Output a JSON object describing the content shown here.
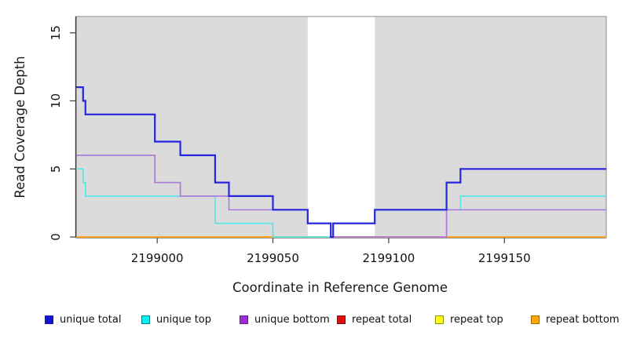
{
  "chart_data": {
    "type": "line",
    "step": "post",
    "title": "",
    "xlabel": "Coordinate in Reference Genome",
    "ylabel": "Read Coverage Depth",
    "xlim": [
      2198965,
      2199194
    ],
    "ylim": [
      0,
      16.2
    ],
    "x_end": 2199194,
    "grid": false,
    "legend_position": "bottom",
    "xticks": [
      2199000,
      2199050,
      2199100,
      2199150
    ],
    "xtick_labels": [
      "2199000",
      "2199050",
      "2199100",
      "2199150"
    ],
    "yticks": [
      0,
      5,
      10,
      15
    ],
    "ytick_labels": [
      "0",
      "5",
      "10",
      "15"
    ],
    "shading_color": "#DBDBDB",
    "plot_bg_shaded_regions": [
      [
        2198965,
        2199065
      ],
      [
        2199094,
        2199194
      ]
    ],
    "series": [
      {
        "name": "unique total",
        "color": "#2525DE",
        "width": 2.2,
        "points": [
          [
            2198965,
            11
          ],
          [
            2198968,
            10
          ],
          [
            2198969,
            9
          ],
          [
            2198999,
            7
          ],
          [
            2199010,
            6
          ],
          [
            2199025,
            4
          ],
          [
            2199031,
            3
          ],
          [
            2199050,
            2
          ],
          [
            2199065,
            1
          ],
          [
            2199075,
            0
          ],
          [
            2199076,
            1
          ],
          [
            2199094,
            2
          ],
          [
            2199125,
            4
          ],
          [
            2199131,
            5
          ]
        ]
      },
      {
        "name": "unique top",
        "color": "#58E6E6",
        "width": 1.7,
        "points": [
          [
            2198965,
            5
          ],
          [
            2198968,
            4
          ],
          [
            2198969,
            3
          ],
          [
            2199025,
            1
          ],
          [
            2199050,
            0
          ],
          [
            2199076,
            1
          ],
          [
            2199094,
            2
          ],
          [
            2199131,
            3
          ]
        ]
      },
      {
        "name": "unique bottom",
        "color": "#AB7CDC",
        "width": 1.7,
        "points": [
          [
            2198965,
            6
          ],
          [
            2198999,
            4
          ],
          [
            2199010,
            3
          ],
          [
            2199031,
            2
          ],
          [
            2199065,
            1
          ],
          [
            2199075,
            0
          ],
          [
            2199125,
            2
          ]
        ]
      },
      {
        "name": "repeat total",
        "color": "#D42A2A",
        "width": 1.5,
        "points": [
          [
            2198965,
            0
          ]
        ]
      },
      {
        "name": "repeat top",
        "color": "#EDED2F",
        "width": 1.5,
        "points": [
          [
            2198965,
            0
          ]
        ]
      },
      {
        "name": "repeat bottom",
        "color": "#FFA41E",
        "width": 2,
        "points": [
          [
            2198965,
            0
          ]
        ]
      }
    ],
    "draw_order": [
      3,
      4,
      5,
      1,
      2,
      0
    ]
  },
  "legend": {
    "items": [
      {
        "label": "unique total",
        "fill": "#1414CC",
        "border": "#1414CC"
      },
      {
        "label": "unique top",
        "fill": "#00F2F2",
        "border": "#0B8080"
      },
      {
        "label": "unique bottom",
        "fill": "#9C2FD2",
        "border": "#641E88"
      },
      {
        "label": "repeat total",
        "fill": "#E01010",
        "border": "#8F0A0A"
      },
      {
        "label": "repeat top",
        "fill": "#FCFC14",
        "border": "#8F8F0A"
      },
      {
        "label": "repeat bottom",
        "fill": "#FFA50A",
        "border": "#9C6A06"
      }
    ]
  }
}
